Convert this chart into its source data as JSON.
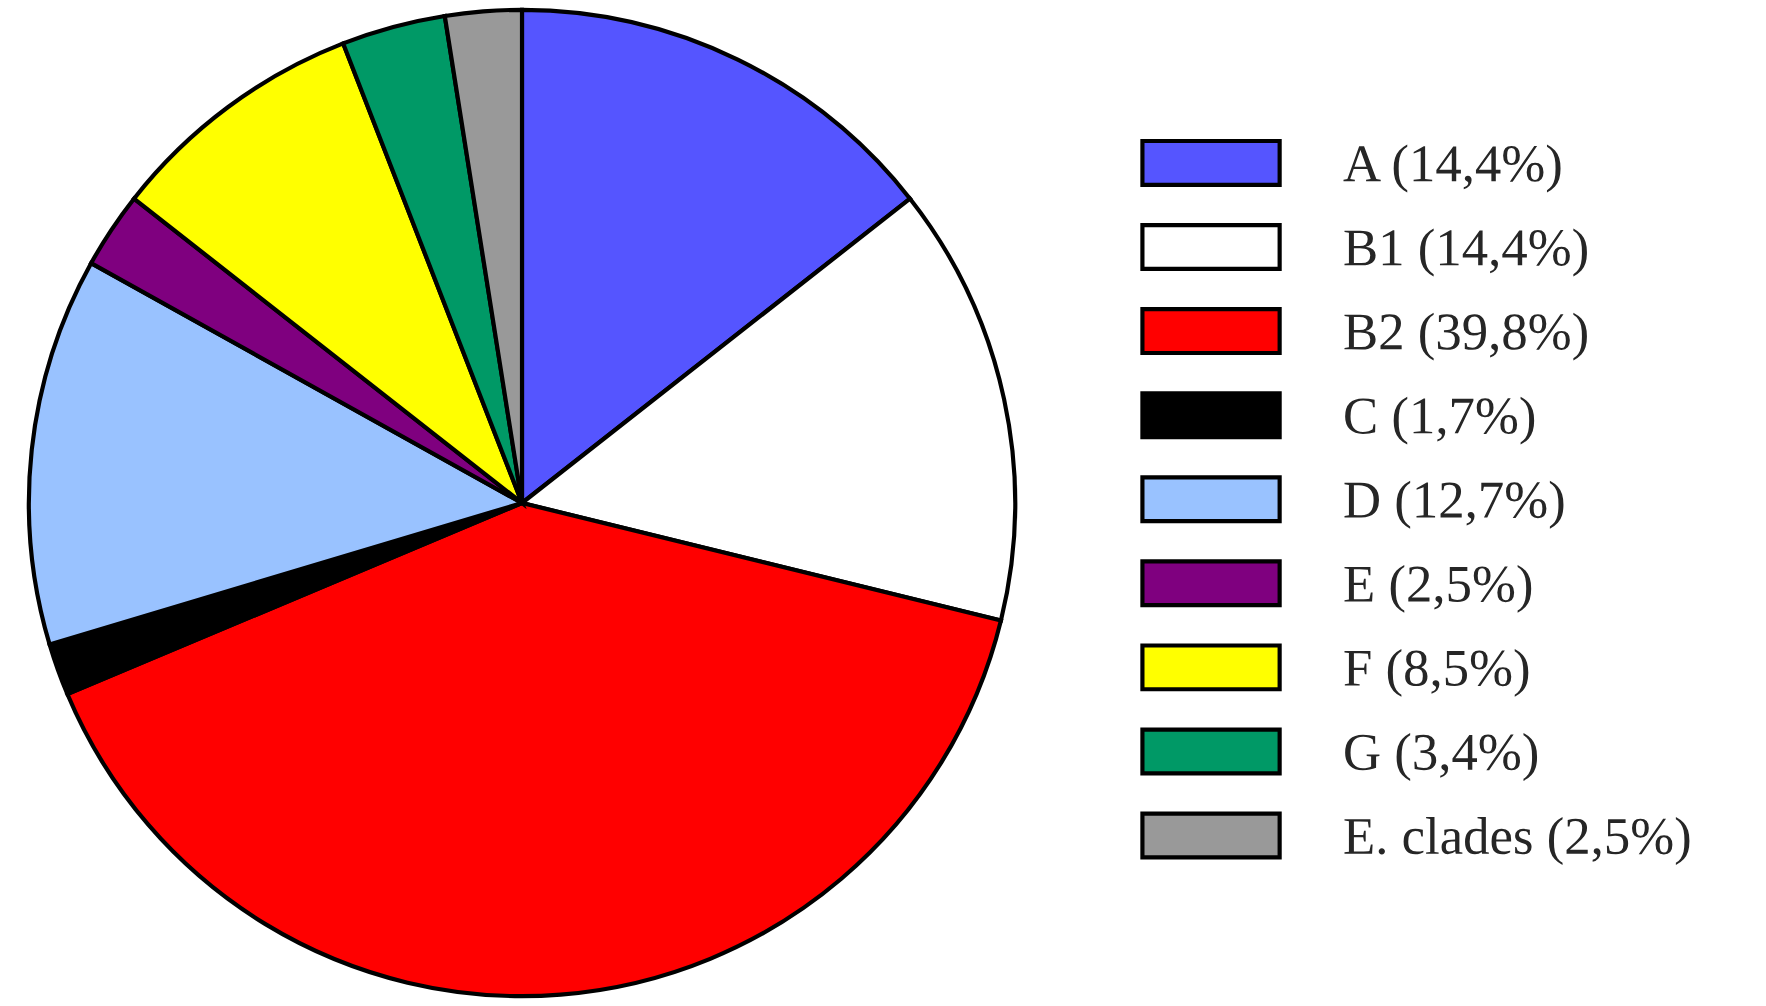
{
  "chart_data": {
    "type": "pie",
    "categories": [
      "A (14,4%)",
      "B1 (14,4%)",
      "B2 (39,8%)",
      "C (1,7%)",
      "D (12,7%)",
      "E (2,5%)",
      "F (8,5%)",
      "G (3,4%)",
      "E. clades (2,5%)"
    ],
    "values": [
      14.4,
      14.4,
      39.8,
      1.7,
      12.7,
      2.5,
      8.5,
      3.4,
      2.5
    ],
    "colors": [
      "#5555ff",
      "#ffffff",
      "#ff0000",
      "#000000",
      "#99c2ff",
      "#7f007f",
      "#ffff00",
      "#009966",
      "#999999"
    ],
    "legend": "right"
  }
}
